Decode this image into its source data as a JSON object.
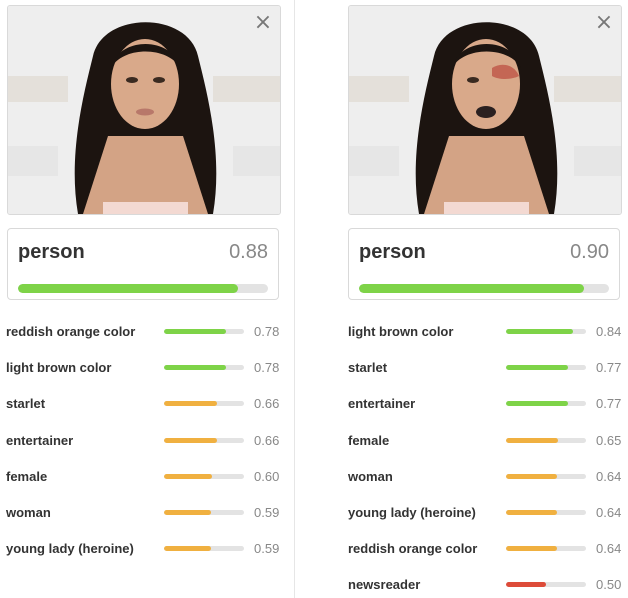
{
  "colors": {
    "high": "#7ed348",
    "medium": "#f0b040",
    "low": "#dd4b39",
    "track": "#e3e3e3"
  },
  "panels": [
    {
      "image": {
        "close_icon": "×"
      },
      "top": {
        "label": "person",
        "score": "0.88",
        "value": 0.88
      },
      "tags": [
        {
          "label": "reddish orange color",
          "score": "0.78",
          "value": 0.78,
          "level": "high"
        },
        {
          "label": "light brown color",
          "score": "0.78",
          "value": 0.78,
          "level": "high"
        },
        {
          "label": "starlet",
          "score": "0.66",
          "value": 0.66,
          "level": "medium"
        },
        {
          "label": "entertainer",
          "score": "0.66",
          "value": 0.66,
          "level": "medium"
        },
        {
          "label": "female",
          "score": "0.60",
          "value": 0.6,
          "level": "medium"
        },
        {
          "label": "woman",
          "score": "0.59",
          "value": 0.59,
          "level": "medium"
        },
        {
          "label": "young lady (heroine)",
          "score": "0.59",
          "value": 0.59,
          "level": "medium"
        }
      ]
    },
    {
      "image": {
        "close_icon": "×"
      },
      "top": {
        "label": "person",
        "score": "0.90",
        "value": 0.9
      },
      "tags": [
        {
          "label": "light brown color",
          "score": "0.84",
          "value": 0.84,
          "level": "high"
        },
        {
          "label": "starlet",
          "score": "0.77",
          "value": 0.77,
          "level": "high"
        },
        {
          "label": "entertainer",
          "score": "0.77",
          "value": 0.77,
          "level": "high"
        },
        {
          "label": "female",
          "score": "0.65",
          "value": 0.65,
          "level": "medium"
        },
        {
          "label": "woman",
          "score": "0.64",
          "value": 0.64,
          "level": "medium"
        },
        {
          "label": "young lady (heroine)",
          "score": "0.64",
          "value": 0.64,
          "level": "medium"
        },
        {
          "label": "reddish orange color",
          "score": "0.64",
          "value": 0.64,
          "level": "medium"
        },
        {
          "label": "newsreader",
          "score": "0.50",
          "value": 0.5,
          "level": "low"
        }
      ]
    }
  ]
}
